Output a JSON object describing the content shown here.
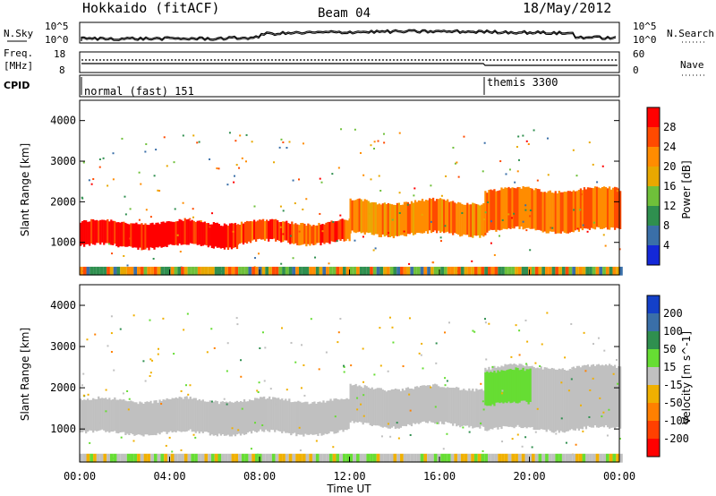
{
  "header": {
    "station": "Hokkaido (fitACF)",
    "beam": "Beam 04",
    "date": "18/May/2012"
  },
  "top_panel": {
    "nsky_label": "N.Sky",
    "nsky_ticks": [
      "10^5",
      "10^0"
    ],
    "nsearch_label": "N.Search",
    "freq_label_line1": "Freq.",
    "freq_label_line2": "[MHz]",
    "freq_ticks": [
      "18",
      "8"
    ],
    "nave_label": "Nave",
    "nave_ticks": [
      "60",
      "0"
    ],
    "cpid_label": "CPID",
    "cpid_modes": [
      {
        "text": "normal (fast) 151",
        "start_hour": 0
      },
      {
        "text": "themis 3300",
        "start_hour": 18
      }
    ]
  },
  "power_colorbar": {
    "label": "Power [dB]",
    "ticks": [
      "28",
      "24",
      "20",
      "16",
      "12",
      "8",
      "4"
    ],
    "colors": [
      "#ff0000",
      "#ff4a00",
      "#ff8c00",
      "#e8a800",
      "#6fc03a",
      "#2f8f4f",
      "#3a6fa8",
      "#1428d8"
    ]
  },
  "velocity_colorbar": {
    "label": "Velocity [m s^-1]",
    "ticks": [
      "200",
      "100",
      "50",
      "15",
      "-15",
      "-50",
      "-100",
      "-200"
    ],
    "colors": [
      "#1440c8",
      "#3a6fa8",
      "#2f8f4f",
      "#66dd33",
      "#c0c0c0",
      "#f0b000",
      "#ff8000",
      "#ff4000",
      "#ff0000"
    ]
  },
  "chart_data": [
    {
      "type": "heatmap",
      "name": "power",
      "ylabel": "Slant Range [km]",
      "ytick_labels": [
        "1000",
        "2000",
        "3000",
        "4000"
      ],
      "ylim": [
        200,
        4500
      ],
      "xlim": [
        0,
        24
      ],
      "echo_bands": [
        {
          "start_hour": 0,
          "end_hour": 7,
          "range_low": 900,
          "range_high": 1500,
          "power_db": 28
        },
        {
          "start_hour": 7,
          "end_hour": 12,
          "range_low": 1000,
          "range_high": 1500,
          "power_db": 24
        },
        {
          "start_hour": 12,
          "end_hour": 18,
          "range_low": 1200,
          "range_high": 2000,
          "power_db": 20
        },
        {
          "start_hour": 18,
          "end_hour": 24,
          "range_low": 1300,
          "range_high": 2300,
          "power_db": 22
        }
      ]
    },
    {
      "type": "heatmap",
      "name": "velocity",
      "ylabel": "Slant Range [km]",
      "ytick_labels": [
        "1000",
        "2000",
        "3000",
        "4000"
      ],
      "xlabel": "Time UT",
      "xtick_labels": [
        "00:00",
        "04:00",
        "08:00",
        "12:00",
        "16:00",
        "20:00",
        "00:00"
      ],
      "ylim": [
        200,
        4500
      ],
      "xlim": [
        0,
        24
      ],
      "echo_bands": [
        {
          "start_hour": 0,
          "end_hour": 12,
          "range_low": 900,
          "range_high": 1700,
          "velocity": 0
        },
        {
          "start_hour": 12,
          "end_hour": 18,
          "range_low": 1100,
          "range_high": 2000,
          "velocity": 0
        },
        {
          "start_hour": 18,
          "end_hour": 24,
          "range_low": 1000,
          "range_high": 2500,
          "velocity": 0
        },
        {
          "start_hour": 18,
          "end_hour": 20,
          "range_low": 1600,
          "range_high": 2400,
          "velocity": 30
        }
      ]
    }
  ]
}
